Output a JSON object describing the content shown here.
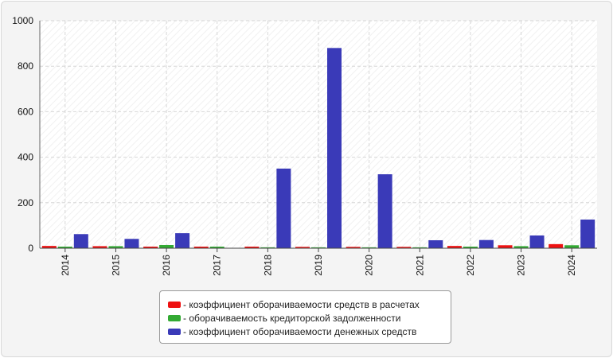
{
  "chart_data": {
    "type": "bar",
    "categories": [
      "2014",
      "2015",
      "2016",
      "2017",
      "2018",
      "2019",
      "2020",
      "2021",
      "2022",
      "2023",
      "2024"
    ],
    "series": [
      {
        "name": "коэффициент оборачиваемости средств в расчетах",
        "color": "#ee1111",
        "values": [
          10,
          9,
          7,
          7,
          7,
          6,
          6,
          6,
          10,
          13,
          18
        ]
      },
      {
        "name": "оборачиваемость кредиторской задолженности",
        "color": "#33aa33",
        "values": [
          7,
          9,
          14,
          7,
          4,
          4,
          4,
          4,
          7,
          9,
          13
        ]
      },
      {
        "name": "коэффициент оборачиваемости денежных средств",
        "color": "#3a3ab8",
        "values": [
          62,
          41,
          66,
          0,
          350,
          880,
          325,
          35,
          36,
          56,
          126
        ]
      }
    ],
    "ylim": [
      0,
      1000
    ],
    "yticks": [
      0,
      200,
      400,
      600,
      800,
      1000
    ],
    "grid": true,
    "legend_position": "bottom",
    "legend_prefix": "- ",
    "title": "",
    "xlabel": "",
    "ylabel": ""
  }
}
